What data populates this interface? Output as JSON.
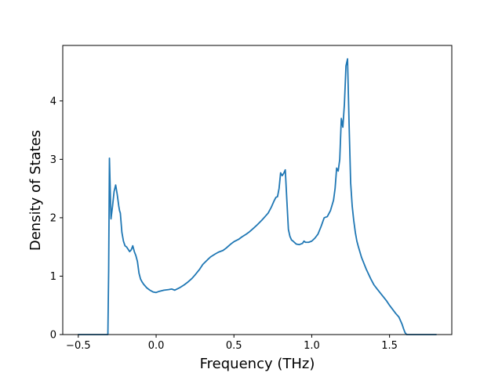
{
  "chart_data": {
    "type": "line",
    "title": "",
    "xlabel": "Frequency (THz)",
    "ylabel": "Density of States",
    "xlim": [
      -0.6,
      1.9
    ],
    "ylim": [
      0,
      4.95
    ],
    "xticks": [
      -0.5,
      0.0,
      0.5,
      1.0,
      1.5
    ],
    "xtick_labels": [
      "−0.5",
      "0.0",
      "0.5",
      "1.0",
      "1.5"
    ],
    "yticks": [
      0,
      1,
      2,
      3,
      4
    ],
    "ytick_labels": [
      "0",
      "1",
      "2",
      "3",
      "4"
    ],
    "grid": false,
    "legend": "none",
    "line_color": "#1f77b4",
    "series": [
      {
        "x": [
          -0.5,
          -0.31,
          -0.305,
          -0.3,
          -0.29,
          -0.28,
          -0.27,
          -0.26,
          -0.25,
          -0.24,
          -0.235,
          -0.23,
          -0.22,
          -0.21,
          -0.2,
          -0.19,
          -0.18,
          -0.17,
          -0.16,
          -0.15,
          -0.14,
          -0.13,
          -0.12,
          -0.11,
          -0.1,
          -0.09,
          -0.08,
          -0.06,
          -0.04,
          -0.02,
          0.0,
          0.02,
          0.05,
          0.08,
          0.1,
          0.12,
          0.15,
          0.18,
          0.2,
          0.23,
          0.25,
          0.28,
          0.3,
          0.33,
          0.35,
          0.38,
          0.4,
          0.43,
          0.45,
          0.48,
          0.5,
          0.53,
          0.55,
          0.58,
          0.6,
          0.63,
          0.65,
          0.68,
          0.7,
          0.72,
          0.74,
          0.76,
          0.77,
          0.78,
          0.79,
          0.8,
          0.81,
          0.82,
          0.83,
          0.84,
          0.85,
          0.86,
          0.87,
          0.88,
          0.9,
          0.92,
          0.94,
          0.95,
          0.96,
          0.98,
          1.0,
          1.02,
          1.04,
          1.06,
          1.08,
          1.1,
          1.12,
          1.14,
          1.15,
          1.16,
          1.17,
          1.18,
          1.19,
          1.2,
          1.21,
          1.22,
          1.23,
          1.24,
          1.25,
          1.26,
          1.27,
          1.28,
          1.29,
          1.3,
          1.32,
          1.35,
          1.38,
          1.4,
          1.42,
          1.45,
          1.48,
          1.5,
          1.52,
          1.54,
          1.56,
          1.58,
          1.59,
          1.6,
          1.61,
          1.65,
          1.8
        ],
        "y": [
          0,
          0,
          1.1,
          3.02,
          1.98,
          2.2,
          2.45,
          2.56,
          2.4,
          2.2,
          2.12,
          2.08,
          1.75,
          1.6,
          1.52,
          1.5,
          1.46,
          1.42,
          1.45,
          1.52,
          1.42,
          1.35,
          1.25,
          1.05,
          0.95,
          0.9,
          0.86,
          0.8,
          0.76,
          0.73,
          0.72,
          0.74,
          0.76,
          0.77,
          0.78,
          0.76,
          0.8,
          0.85,
          0.89,
          0.96,
          1.02,
          1.12,
          1.2,
          1.28,
          1.33,
          1.38,
          1.41,
          1.44,
          1.48,
          1.55,
          1.59,
          1.63,
          1.67,
          1.72,
          1.76,
          1.83,
          1.88,
          1.96,
          2.02,
          2.08,
          2.18,
          2.3,
          2.35,
          2.36,
          2.5,
          2.77,
          2.72,
          2.76,
          2.82,
          2.3,
          1.8,
          1.68,
          1.62,
          1.6,
          1.55,
          1.54,
          1.56,
          1.6,
          1.58,
          1.58,
          1.6,
          1.65,
          1.72,
          1.85,
          2.0,
          2.02,
          2.12,
          2.3,
          2.5,
          2.85,
          2.8,
          3.0,
          3.7,
          3.55,
          3.95,
          4.6,
          4.72,
          3.6,
          2.6,
          2.2,
          1.95,
          1.75,
          1.6,
          1.5,
          1.32,
          1.12,
          0.95,
          0.85,
          0.78,
          0.68,
          0.58,
          0.5,
          0.43,
          0.36,
          0.3,
          0.18,
          0.1,
          0.03,
          0.0,
          0.0,
          0.0
        ]
      }
    ]
  }
}
